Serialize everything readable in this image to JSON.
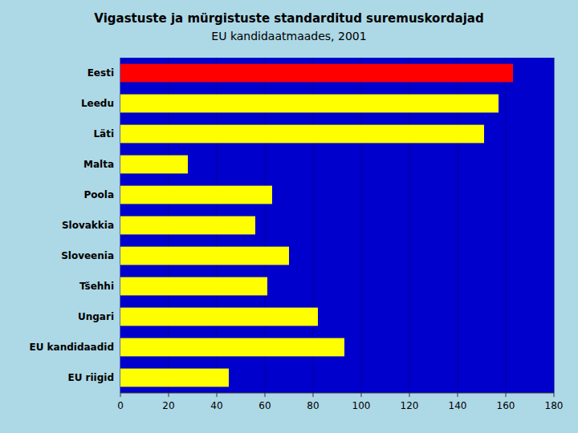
{
  "chart_data": {
    "type": "bar",
    "orientation": "horizontal",
    "title": "Vigastuste ja mürgistuste standarditud suremuskordajad",
    "subtitle": "EU kandidaatmaades, 2001",
    "categories": [
      "Eesti",
      "Leedu",
      "Läti",
      "Malta",
      "Poola",
      "Slovakkia",
      "Sloveenia",
      "Tšehhi",
      "Ungari",
      "EU kandidaadid",
      "EU riigid"
    ],
    "values": [
      163,
      157,
      151,
      28,
      63,
      56,
      70,
      61,
      82,
      93,
      45
    ],
    "colors": [
      "#ff0000",
      "#ffff00",
      "#ffff00",
      "#ffff00",
      "#ffff00",
      "#ffff00",
      "#ffff00",
      "#ffff00",
      "#ffff00",
      "#ffff00",
      "#ffff00"
    ],
    "xlim": [
      0,
      180
    ],
    "xticks": [
      0,
      20,
      40,
      60,
      80,
      100,
      120,
      140,
      160,
      180
    ],
    "grid": true
  }
}
